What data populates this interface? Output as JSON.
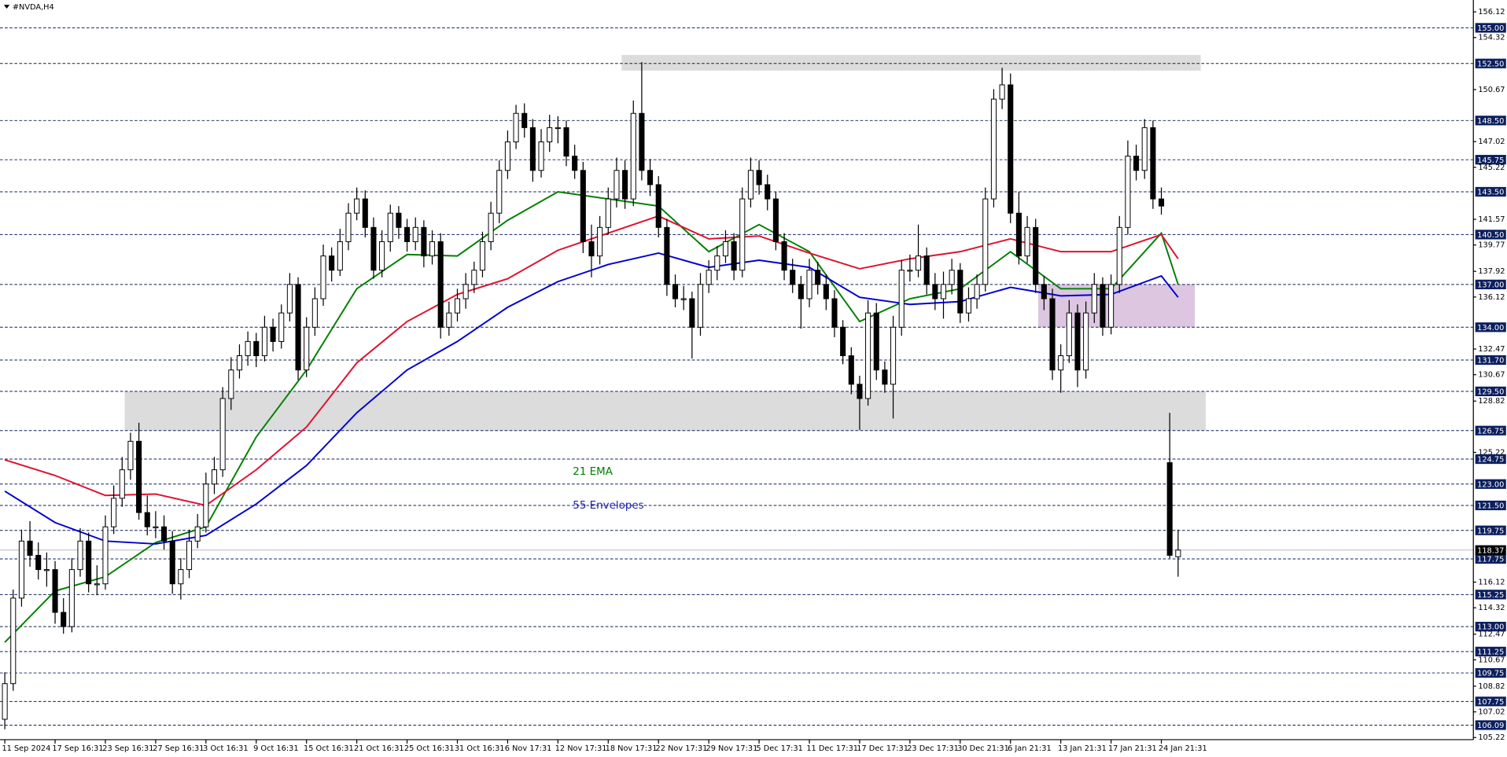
{
  "chart_data": {
    "type": "candlestick",
    "title": "#NVDA,H4",
    "categories": [
      "11 Sep 2024",
      null,
      null,
      null,
      null,
      null,
      "17 Sep 16:31",
      null,
      null,
      null,
      null,
      null,
      "23 Sep 16:31",
      null,
      null,
      null,
      null,
      null,
      "27 Sep 16:31",
      null,
      null,
      null,
      null,
      null,
      "3 Oct 16:31",
      null,
      null,
      null,
      null,
      null,
      "9 Oct 16:31",
      null,
      null,
      null,
      null,
      null,
      "15 Oct 16:31",
      null,
      null,
      null,
      null,
      null,
      "21 Oct 16:31",
      null,
      null,
      null,
      null,
      null,
      "25 Oct 16:31",
      null,
      null,
      null,
      null,
      null,
      "31 Oct 16:31",
      null,
      null,
      null,
      null,
      null,
      "6 Nov 17:31",
      null,
      null,
      null,
      null,
      null,
      "12 Nov 17:31",
      null,
      null,
      null,
      null,
      null,
      "18 Nov 17:31",
      null,
      null,
      null,
      null,
      null,
      "22 Nov 17:31",
      null,
      null,
      null,
      null,
      null,
      "29 Nov 17:31",
      null,
      null,
      null,
      null,
      null,
      "5 Dec 17:31",
      null,
      null,
      null,
      null,
      null,
      "11 Dec 17:31",
      null,
      null,
      null,
      null,
      null,
      "17 Dec 17:31",
      null,
      null,
      null,
      null,
      null,
      "23 Dec 17:31",
      null,
      null,
      null,
      null,
      null,
      "30 Dec 21:31",
      null,
      null,
      null,
      null,
      null,
      "6 Jan 21:31",
      null,
      null,
      null,
      null,
      null,
      "13 Jan 21:31",
      null,
      null,
      null,
      null,
      null,
      "17 Jan 21:31",
      null,
      null,
      null,
      null,
      null,
      "24 Jan 21:31",
      null,
      null
    ],
    "candles": [
      [
        106.5,
        109.8,
        105.8,
        109
      ],
      [
        109,
        115.6,
        108.5,
        115
      ],
      [
        115,
        119.8,
        114.4,
        119
      ],
      [
        119,
        120.4,
        117.2,
        118
      ],
      [
        118,
        118.9,
        116.3,
        117
      ],
      [
        117,
        118.2,
        115.8,
        117
      ],
      [
        117,
        117.6,
        113.2,
        114
      ],
      [
        114,
        115,
        112.5,
        113
      ],
      [
        113,
        117.8,
        112.6,
        117
      ],
      [
        117,
        119.9,
        116.5,
        119
      ],
      [
        119,
        119.6,
        115.4,
        116
      ],
      [
        116,
        117.3,
        115.2,
        116
      ],
      [
        116,
        120.8,
        115.6,
        120
      ],
      [
        120,
        122.9,
        119.5,
        122
      ],
      [
        122,
        124.9,
        121.4,
        124
      ],
      [
        124,
        126.6,
        123.3,
        126
      ],
      [
        126,
        127.3,
        120.5,
        121
      ],
      [
        121,
        122.2,
        119.4,
        120
      ],
      [
        120,
        121.1,
        119.2,
        120
      ],
      [
        120,
        120.8,
        118.4,
        119
      ],
      [
        119,
        119.7,
        115.3,
        116
      ],
      [
        116,
        117.8,
        114.9,
        117
      ],
      [
        117,
        119.8,
        116.4,
        119
      ],
      [
        119,
        120.9,
        118.5,
        120
      ],
      [
        120,
        123.8,
        119.6,
        123
      ],
      [
        123,
        124.9,
        122.3,
        124
      ],
      [
        124,
        129.8,
        123.5,
        129
      ],
      [
        129,
        131.9,
        128.2,
        131
      ],
      [
        131,
        132.8,
        130.4,
        132
      ],
      [
        132,
        133.7,
        131.3,
        133
      ],
      [
        133,
        133.6,
        131.2,
        132
      ],
      [
        132,
        134.8,
        131.6,
        134
      ],
      [
        134,
        134.6,
        132.3,
        133
      ],
      [
        133,
        135.6,
        132.5,
        135
      ],
      [
        135,
        137.8,
        134.4,
        137
      ],
      [
        137,
        137.5,
        130.3,
        131
      ],
      [
        131,
        134.7,
        130.5,
        134
      ],
      [
        134,
        136.8,
        133.4,
        136
      ],
      [
        136,
        139.8,
        135.5,
        139
      ],
      [
        139,
        139.6,
        137.2,
        138
      ],
      [
        138,
        140.9,
        137.6,
        140
      ],
      [
        140,
        142.7,
        139.4,
        142
      ],
      [
        142,
        143.8,
        141.5,
        143
      ],
      [
        143,
        143.6,
        140.3,
        141
      ],
      [
        141,
        141.7,
        137.4,
        138
      ],
      [
        138,
        140.8,
        137.5,
        140
      ],
      [
        140,
        142.6,
        139.3,
        142
      ],
      [
        142,
        142.5,
        140.2,
        141
      ],
      [
        141,
        141.6,
        139.3,
        140
      ],
      [
        140,
        141.7,
        139.4,
        141
      ],
      [
        141,
        141.5,
        138.2,
        139
      ],
      [
        139,
        140.8,
        138.4,
        140
      ],
      [
        140,
        140.6,
        133.2,
        134
      ],
      [
        134,
        135.8,
        133.4,
        135
      ],
      [
        135,
        136.7,
        134.4,
        136
      ],
      [
        136,
        137.8,
        135.3,
        137
      ],
      [
        137,
        138.6,
        136.4,
        138
      ],
      [
        138,
        140.7,
        137.5,
        140
      ],
      [
        140,
        142.8,
        139.4,
        142
      ],
      [
        142,
        145.7,
        141.3,
        145
      ],
      [
        145,
        147.8,
        144.4,
        147
      ],
      [
        147,
        149.6,
        146.5,
        149
      ],
      [
        149,
        149.7,
        147.3,
        148
      ],
      [
        148,
        148.6,
        144.2,
        145
      ],
      [
        145,
        147.9,
        144.5,
        147
      ],
      [
        147,
        148.9,
        146.3,
        148
      ],
      [
        148,
        148.8,
        146.9,
        148
      ],
      [
        148,
        148.5,
        145.3,
        146
      ],
      [
        146,
        146.8,
        144.4,
        145
      ],
      [
        145,
        145.6,
        139.2,
        140
      ],
      [
        140,
        141.2,
        137.5,
        139
      ],
      [
        139,
        141.8,
        138.4,
        141
      ],
      [
        141,
        143.8,
        140.5,
        143
      ],
      [
        143,
        145.9,
        142.4,
        145
      ],
      [
        145,
        145.7,
        142.3,
        143
      ],
      [
        143,
        149.9,
        142.5,
        149
      ],
      [
        149,
        152.6,
        144.3,
        145
      ],
      [
        145,
        145.8,
        143.2,
        144
      ],
      [
        144,
        144.6,
        140.3,
        141
      ],
      [
        141,
        141.6,
        136.2,
        137
      ],
      [
        137,
        137.7,
        135.4,
        136
      ],
      [
        136,
        136.9,
        135.2,
        136
      ],
      [
        136,
        136.5,
        131.8,
        134
      ],
      [
        134,
        137.8,
        133.4,
        137
      ],
      [
        137,
        138.7,
        136.4,
        138
      ],
      [
        138,
        139.7,
        137.3,
        139
      ],
      [
        139,
        140.8,
        138.5,
        140
      ],
      [
        140,
        140.6,
        137.3,
        138
      ],
      [
        138,
        143.8,
        137.5,
        143
      ],
      [
        143,
        145.9,
        142.4,
        145
      ],
      [
        145,
        145.7,
        143.3,
        144
      ],
      [
        144,
        144.7,
        142.2,
        143
      ],
      [
        143,
        143.5,
        139.4,
        140
      ],
      [
        140,
        140.6,
        137.3,
        138
      ],
      [
        138,
        138.8,
        136.4,
        137
      ],
      [
        137,
        137.6,
        133.9,
        136
      ],
      [
        136,
        138.8,
        135.4,
        138
      ],
      [
        138,
        138.6,
        136.3,
        137
      ],
      [
        137,
        137.7,
        135.2,
        136
      ],
      [
        136,
        136.6,
        133.3,
        134
      ],
      [
        134,
        134.5,
        131.4,
        132
      ],
      [
        132,
        132.6,
        129.3,
        130
      ],
      [
        130,
        130.6,
        126.8,
        129
      ],
      [
        129,
        135.9,
        128.5,
        135
      ],
      [
        135,
        135.7,
        130.3,
        131
      ],
      [
        131,
        131.6,
        129.4,
        130
      ],
      [
        130,
        134.8,
        127.6,
        134
      ],
      [
        134,
        138.7,
        133.4,
        138
      ],
      [
        138,
        139.1,
        137.2,
        138
      ],
      [
        138,
        141.2,
        137.5,
        139
      ],
      [
        139,
        139.6,
        136.3,
        137
      ],
      [
        137,
        137.8,
        135.2,
        136
      ],
      [
        136,
        137.9,
        134.6,
        137
      ],
      [
        137,
        138.8,
        136.3,
        138
      ],
      [
        138,
        138.5,
        134.3,
        135
      ],
      [
        135,
        136.8,
        134.4,
        136
      ],
      [
        136,
        137.7,
        135.3,
        137
      ],
      [
        137,
        143.8,
        136.5,
        143
      ],
      [
        143,
        150.7,
        142.4,
        150
      ],
      [
        150,
        152.2,
        149.3,
        151
      ],
      [
        151,
        151.8,
        141.3,
        142
      ],
      [
        142,
        143.5,
        138.4,
        139
      ],
      [
        139,
        141.8,
        138.5,
        141
      ],
      [
        141,
        141.6,
        136.4,
        137
      ],
      [
        137,
        137.6,
        135.2,
        136
      ],
      [
        136,
        136.7,
        130.3,
        131
      ],
      [
        131,
        132.8,
        129.4,
        132
      ],
      [
        132,
        135.9,
        131.5,
        135
      ],
      [
        135,
        135.6,
        129.8,
        131
      ],
      [
        131,
        135.8,
        130.4,
        135
      ],
      [
        135,
        137.8,
        134.3,
        137
      ],
      [
        137,
        137.5,
        133.4,
        134
      ],
      [
        134,
        137.7,
        133.5,
        137
      ],
      [
        137,
        141.8,
        136.4,
        141
      ],
      [
        141,
        147.1,
        140.5,
        146
      ],
      [
        146,
        146.8,
        144.3,
        145
      ],
      [
        145,
        148.6,
        144.4,
        148
      ],
      [
        148,
        148.5,
        142.3,
        143
      ],
      [
        143,
        143.8,
        141.9,
        142.5
      ],
      [
        124.5,
        128,
        117.8,
        118
      ],
      [
        117.9,
        119.8,
        116.5,
        118.37
      ]
    ],
    "bull_color": "#ffffff",
    "bear_color": "#000000",
    "series": [
      {
        "color": "#008000",
        "x": [
          0,
          6,
          12,
          18,
          24,
          30,
          36,
          42,
          48,
          54,
          60,
          66,
          72,
          78,
          84,
          90,
          96,
          102,
          108,
          114,
          120,
          126,
          132,
          138,
          140
        ],
        "values": [
          111.9,
          115.5,
          116.5,
          118.9,
          120,
          126.3,
          131,
          136.7,
          139.1,
          139,
          141.5,
          143.5,
          143,
          142.5,
          139.3,
          141.2,
          139.3,
          134.4,
          136,
          136.7,
          139.3,
          136.7,
          136.7,
          140.6,
          137
        ]
      },
      {
        "color": "#e0102e",
        "x": [
          0,
          6,
          12,
          18,
          24,
          30,
          36,
          42,
          48,
          54,
          60,
          66,
          72,
          78,
          84,
          90,
          96,
          102,
          108,
          114,
          120,
          126,
          132,
          138,
          140
        ],
        "values": [
          124.7,
          123.6,
          122.2,
          122.3,
          121.5,
          124,
          127,
          131.5,
          134.4,
          136.3,
          137.4,
          139.4,
          140.6,
          141.8,
          140.2,
          140.4,
          139.2,
          138.1,
          138.8,
          139.3,
          140.2,
          139.3,
          139.3,
          140.5,
          138.8
        ]
      },
      {
        "color": "#0000d0",
        "x": [
          0,
          6,
          12,
          18,
          24,
          30,
          36,
          42,
          48,
          54,
          60,
          66,
          72,
          78,
          84,
          90,
          96,
          102,
          108,
          114,
          120,
          126,
          132,
          138,
          140
        ],
        "values": [
          122.5,
          120.3,
          119,
          118.8,
          119.4,
          121.6,
          124.3,
          128,
          131,
          133,
          135.4,
          137.2,
          138.4,
          139.2,
          138.2,
          138.7,
          138.2,
          136.1,
          135.6,
          135.8,
          136.8,
          136.2,
          136.3,
          137.6,
          136.1
        ]
      }
    ],
    "annotations": [
      {
        "text": "21 EMA",
        "color": "#008000"
      },
      {
        "text": "55 Envelopes",
        "color": "#2020b0"
      }
    ],
    "zones": [
      {
        "xlim": [
          73.6,
          142.7
        ],
        "ylim": [
          152.0,
          153.1
        ],
        "color": "#dcdcdc"
      },
      {
        "xlim": [
          14.3,
          143.3
        ],
        "ylim": [
          126.75,
          129.5
        ],
        "color": "#dcdcdc"
      },
      {
        "xlim": [
          123.3,
          142.0
        ],
        "ylim": [
          134.0,
          137.0
        ],
        "color": "#dcc6e0"
      }
    ],
    "levels": [
      {
        "value": 155,
        "label": "155.00"
      },
      {
        "value": 152.5,
        "label": "152.50"
      },
      {
        "value": 148.5,
        "label": "148.50"
      },
      {
        "value": 145.75,
        "label": "145.75"
      },
      {
        "value": 143.5,
        "label": "143.50"
      },
      {
        "value": 140.5,
        "label": "140.50"
      },
      {
        "value": 137,
        "label": "137.00"
      },
      {
        "value": 134,
        "label": "134.00"
      },
      {
        "value": 131.7,
        "label": "131.70"
      },
      {
        "value": 129.5,
        "label": "129.50"
      },
      {
        "value": 126.75,
        "label": "126.75"
      },
      {
        "value": 124.75,
        "label": "124.75"
      },
      {
        "value": 123,
        "label": "123.00"
      },
      {
        "value": 121.5,
        "label": "121.50"
      },
      {
        "value": 119.75,
        "label": "119.75"
      },
      {
        "value": 117.75,
        "label": "117.75"
      },
      {
        "value": 115.25,
        "label": "115.25"
      },
      {
        "value": 113,
        "label": "113.00"
      },
      {
        "value": 111.25,
        "label": "111.25"
      },
      {
        "value": 109.75,
        "label": "109.75"
      },
      {
        "value": 107.75,
        "label": "107.75"
      },
      {
        "value": 106.09,
        "label": "106.09"
      }
    ],
    "level_color": "#0c1f5e",
    "last_price": 118.37,
    "ylim": [
      105.07,
      156.95
    ],
    "yticks": [
      156.12,
      154.32,
      150.67,
      147.02,
      145.22,
      141.57,
      139.77,
      137.92,
      136.12,
      132.47,
      130.67,
      128.82,
      125.22,
      116.12,
      114.32,
      112.47,
      110.67,
      108.82,
      107.02,
      105.22
    ]
  }
}
